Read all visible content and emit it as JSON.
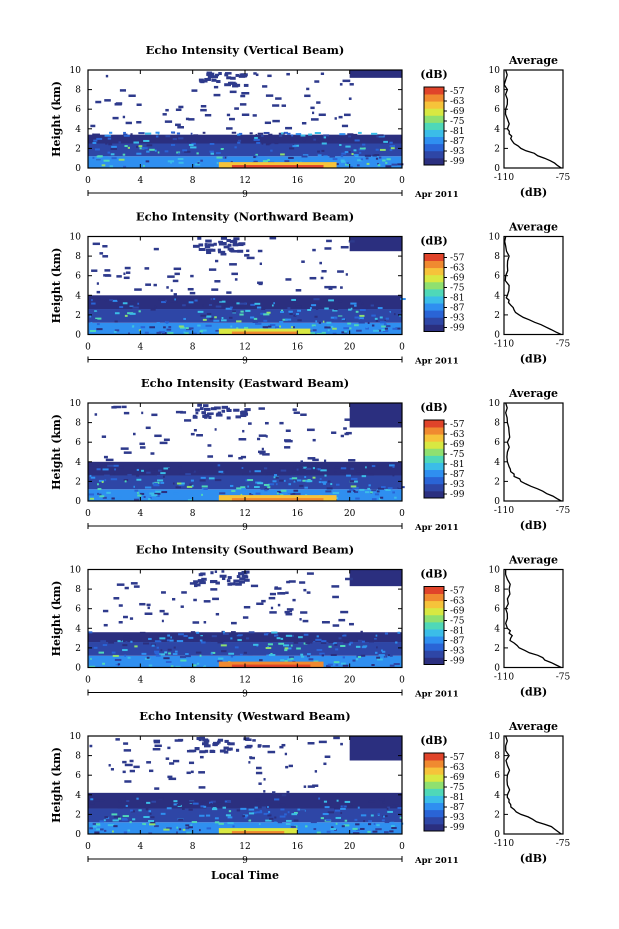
{
  "figure": {
    "xlabel": "Local Time",
    "date_label": "Apr 2011",
    "day_label": "9"
  },
  "panel_titles": [
    "Echo Intensity (Vertical Beam)",
    "Echo Intensity (Northward Beam)",
    "Echo Intensity (Eastward Beam)",
    "Echo Intensity (Southward Beam)",
    "Echo Intensity (Westward Beam)"
  ],
  "colorbar": {
    "unit": "(dB)",
    "ticks": [
      "-57",
      "-63",
      "-69",
      "-75",
      "-81",
      "-87",
      "-93",
      "-99"
    ],
    "colors": [
      "#2b2f7f",
      "#2e46a6",
      "#2a64d6",
      "#2f8ff0",
      "#3bbde8",
      "#4fd8b8",
      "#8fe070",
      "#d8e842",
      "#f6c33a",
      "#f08a30",
      "#e0442a"
    ]
  },
  "average_profile": {
    "title": "Average",
    "xlabel": "(dB)",
    "xticks": [
      "-110",
      "-75"
    ],
    "xlim": [
      -110,
      -75
    ],
    "yticks": [
      "0",
      "2",
      "4",
      "6",
      "8",
      "10"
    ],
    "ylim": [
      0,
      10
    ]
  },
  "chart_data": [
    {
      "type": "heatmap",
      "title": "Echo Intensity (Vertical Beam)",
      "xlabel": "",
      "ylabel": "Height (km)",
      "x_ticks": [
        "0",
        "4",
        "8",
        "12",
        "16",
        "20",
        "0"
      ],
      "y_ticks": [
        "0",
        "2",
        "4",
        "6",
        "8",
        "10"
      ],
      "xlim": [
        0,
        24
      ],
      "ylim": [
        0,
        10
      ],
      "value_range_db": [
        -99,
        -57
      ],
      "layers": [
        {
          "h0": 0,
          "h1": 1.2,
          "db": -85
        },
        {
          "h0": 1.2,
          "h1": 2.5,
          "db": -93
        },
        {
          "h0": 2.5,
          "h1": 3.4,
          "db": -99
        },
        {
          "h0": 9.2,
          "h1": 10,
          "db": -99,
          "t0": 20,
          "t1": 24
        }
      ],
      "peak": {
        "t0": 10,
        "t1": 19,
        "h0": 0,
        "h1": 0.6,
        "db": -65
      },
      "average_profile": {
        "height_km": [
          0,
          0.5,
          1,
          1.5,
          2,
          2.5,
          3,
          3.5,
          4,
          5,
          6,
          7,
          8,
          9,
          10
        ],
        "db": [
          -76,
          -80,
          -86,
          -92,
          -100,
          -104,
          -106,
          -107,
          -108,
          -108,
          -109,
          -108,
          -108,
          -109,
          -109
        ]
      }
    },
    {
      "type": "heatmap",
      "title": "Echo Intensity (Northward Beam)",
      "xlabel": "",
      "ylabel": "Height (km)",
      "x_ticks": [
        "0",
        "4",
        "8",
        "12",
        "16",
        "20",
        "0"
      ],
      "y_ticks": [
        "0",
        "2",
        "4",
        "6",
        "8",
        "10"
      ],
      "xlim": [
        0,
        24
      ],
      "ylim": [
        0,
        10
      ],
      "value_range_db": [
        -99,
        -57
      ],
      "layers": [
        {
          "h0": 0,
          "h1": 1.2,
          "db": -85
        },
        {
          "h0": 1.2,
          "h1": 2.6,
          "db": -93
        },
        {
          "h0": 2.6,
          "h1": 4.0,
          "db": -99
        },
        {
          "h0": 8.5,
          "h1": 10,
          "db": -99,
          "t0": 20,
          "t1": 24
        }
      ],
      "peak": {
        "t0": 10,
        "t1": 17,
        "h0": 0,
        "h1": 0.6,
        "db": -69
      },
      "average_profile": {
        "height_km": [
          0,
          0.5,
          1,
          1.5,
          2,
          2.5,
          3,
          3.5,
          4,
          5,
          6,
          7,
          8,
          9,
          10
        ],
        "db": [
          -76,
          -82,
          -88,
          -95,
          -101,
          -104,
          -106,
          -107,
          -108,
          -107,
          -109,
          -108,
          -107,
          -109,
          -109
        ]
      }
    },
    {
      "type": "heatmap",
      "title": "Echo Intensity (Eastward Beam)",
      "xlabel": "",
      "ylabel": "Height (km)",
      "x_ticks": [
        "0",
        "4",
        "8",
        "12",
        "16",
        "20",
        "0"
      ],
      "y_ticks": [
        "0",
        "2",
        "4",
        "6",
        "8",
        "10"
      ],
      "xlim": [
        0,
        24
      ],
      "ylim": [
        0,
        10
      ],
      "value_range_db": [
        -99,
        -57
      ],
      "layers": [
        {
          "h0": 0,
          "h1": 1.2,
          "db": -85
        },
        {
          "h0": 1.2,
          "h1": 2.6,
          "db": -93
        },
        {
          "h0": 2.6,
          "h1": 4.0,
          "db": -99
        },
        {
          "h0": 7.5,
          "h1": 10,
          "db": -99,
          "t0": 20,
          "t1": 24
        }
      ],
      "peak": {
        "t0": 10,
        "t1": 19,
        "h0": 0,
        "h1": 0.6,
        "db": -67
      },
      "average_profile": {
        "height_km": [
          0,
          0.5,
          1,
          1.5,
          2,
          2.5,
          3,
          3.5,
          4,
          5,
          6,
          7,
          8,
          9,
          10
        ],
        "db": [
          -76,
          -81,
          -87,
          -94,
          -100,
          -104,
          -106,
          -107,
          -108,
          -108,
          -108,
          -107,
          -108,
          -109,
          -109
        ]
      }
    },
    {
      "type": "heatmap",
      "title": "Echo Intensity (Southward Beam)",
      "xlabel": "",
      "ylabel": "Height (km)",
      "x_ticks": [
        "0",
        "4",
        "8",
        "12",
        "16",
        "20",
        "0"
      ],
      "y_ticks": [
        "0",
        "2",
        "4",
        "6",
        "8",
        "10"
      ],
      "xlim": [
        0,
        24
      ],
      "ylim": [
        0,
        10
      ],
      "value_range_db": [
        -99,
        -57
      ],
      "layers": [
        {
          "h0": 0,
          "h1": 1.2,
          "db": -85
        },
        {
          "h0": 1.2,
          "h1": 2.6,
          "db": -93
        },
        {
          "h0": 2.6,
          "h1": 3.6,
          "db": -99
        },
        {
          "h0": 8.3,
          "h1": 10,
          "db": -99,
          "t0": 20,
          "t1": 24
        }
      ],
      "peak": {
        "t0": 10,
        "t1": 18,
        "h0": 0,
        "h1": 0.6,
        "db": -63
      },
      "average_profile": {
        "height_km": [
          0,
          0.5,
          1,
          1.5,
          2,
          2.5,
          3,
          3.5,
          4,
          5,
          6,
          7,
          8,
          9,
          10
        ],
        "db": [
          -76,
          -82,
          -87,
          -95,
          -101,
          -104,
          -106,
          -107,
          -108,
          -108,
          -109,
          -108,
          -107,
          -108,
          -109
        ]
      }
    },
    {
      "type": "heatmap",
      "title": "Echo Intensity (Westward Beam)",
      "xlabel": "Local Time",
      "ylabel": "Height (km)",
      "x_ticks": [
        "0",
        "4",
        "8",
        "12",
        "16",
        "20",
        "0"
      ],
      "y_ticks": [
        "0",
        "2",
        "4",
        "6",
        "8",
        "10"
      ],
      "xlim": [
        0,
        24
      ],
      "ylim": [
        0,
        10
      ],
      "value_range_db": [
        -99,
        -57
      ],
      "layers": [
        {
          "h0": 0,
          "h1": 1.2,
          "db": -85
        },
        {
          "h0": 1.2,
          "h1": 2.6,
          "db": -93
        },
        {
          "h0": 2.6,
          "h1": 4.2,
          "db": -99
        },
        {
          "h0": 7.5,
          "h1": 10,
          "db": -99,
          "t0": 20,
          "t1": 24
        }
      ],
      "peak": {
        "t0": 10,
        "t1": 16,
        "h0": 0,
        "h1": 0.6,
        "db": -69
      },
      "average_profile": {
        "height_km": [
          0,
          0.5,
          1,
          1.5,
          2,
          2.5,
          3,
          3.5,
          4,
          5,
          6,
          7,
          8,
          9,
          10
        ],
        "db": [
          -76,
          -80,
          -86,
          -93,
          -100,
          -104,
          -106,
          -107,
          -108,
          -108,
          -108,
          -108,
          -107,
          -109,
          -109
        ]
      }
    }
  ]
}
